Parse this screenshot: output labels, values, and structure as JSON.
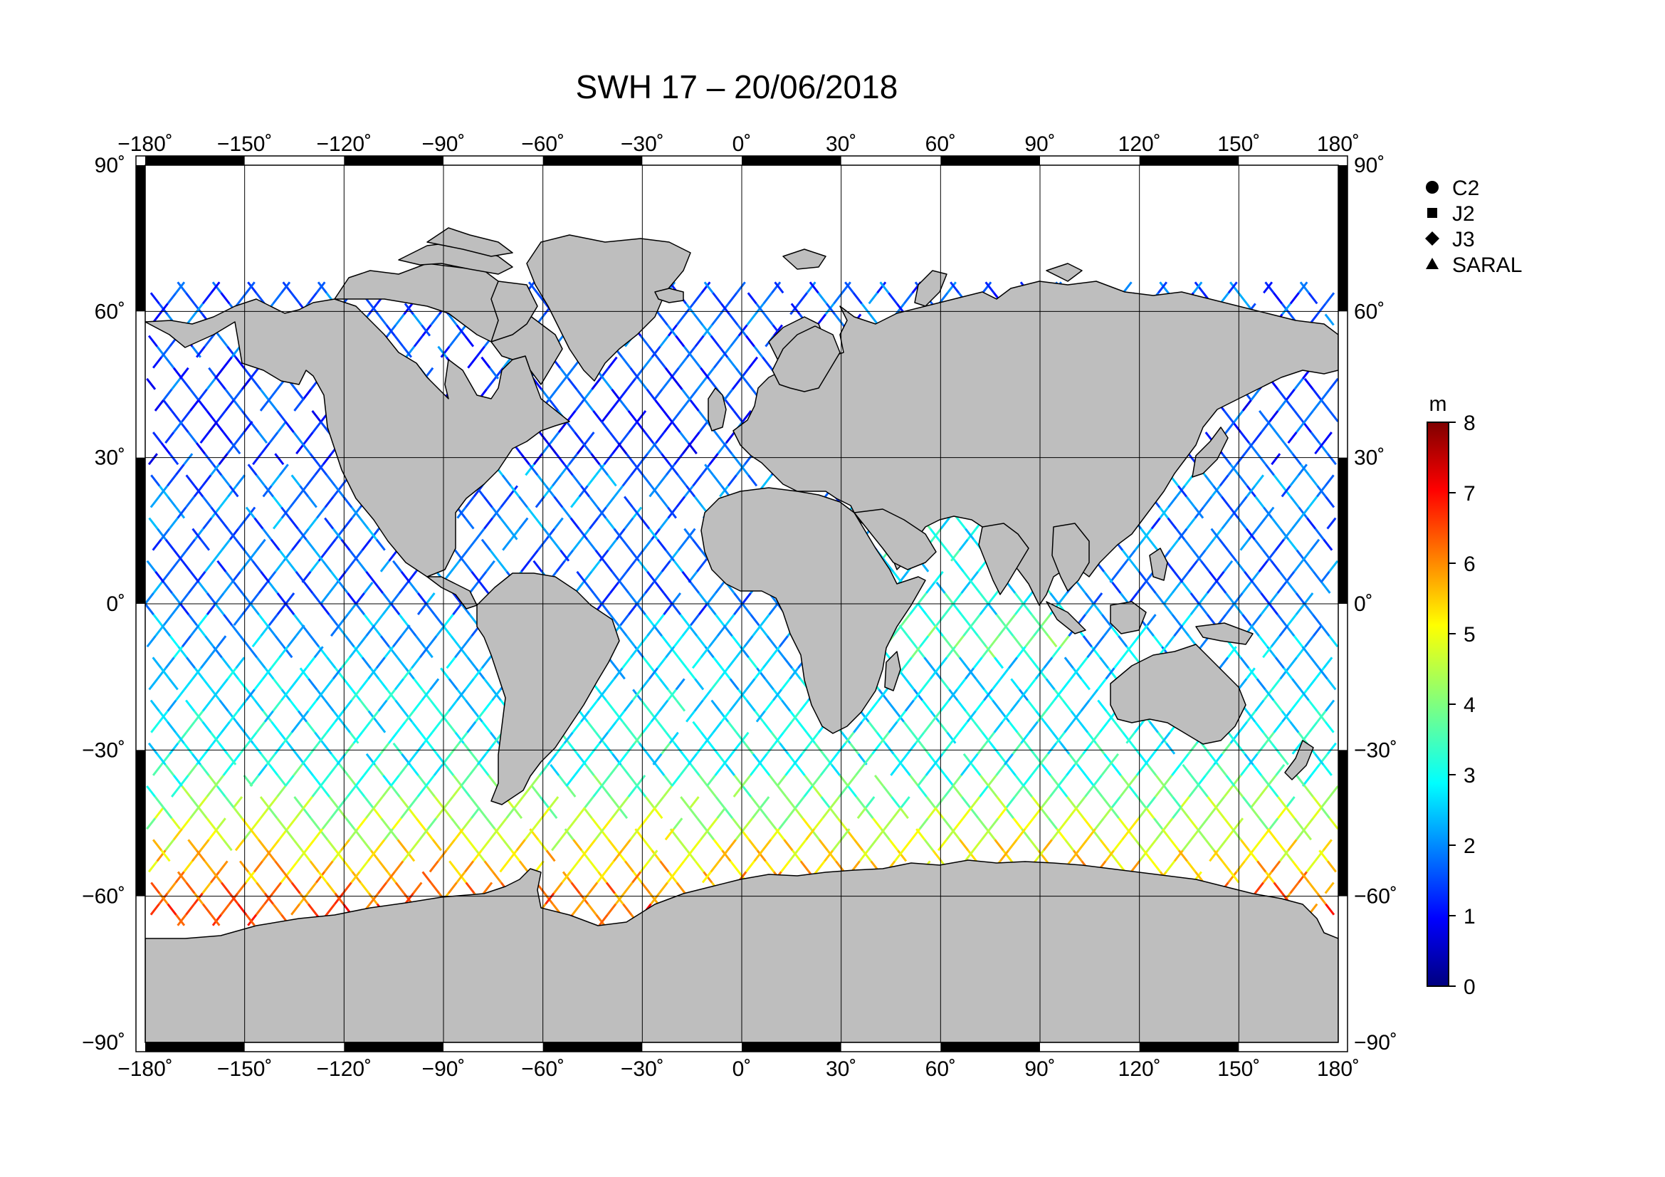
{
  "title": "SWH 17 – 20/06/2018",
  "axes": {
    "lon_ticks": [
      "−180˚",
      "−150˚",
      "−120˚",
      "−90˚",
      "−60˚",
      "−30˚",
      "0˚",
      "30˚",
      "60˚",
      "90˚",
      "120˚",
      "150˚",
      "180˚"
    ],
    "lat_ticks_left": [
      "90˚",
      "60˚",
      "30˚",
      "0˚",
      "−30˚",
      "−60˚",
      "−90˚"
    ],
    "lat_ticks_right": [
      "90˚",
      "60˚",
      "30˚",
      "0˚",
      "−30˚",
      "−60˚",
      "−90˚"
    ],
    "lon_range": [
      -180,
      180
    ],
    "lat_range": [
      -90,
      90
    ],
    "grid_step_deg": 30
  },
  "legend": {
    "items": [
      {
        "label": "C2",
        "marker": "circle"
      },
      {
        "label": "J2",
        "marker": "square"
      },
      {
        "label": "J3",
        "marker": "diamond"
      },
      {
        "label": "SARAL",
        "marker": "triangle"
      }
    ]
  },
  "colorbar": {
    "unit": "m",
    "min": 0,
    "max": 8,
    "tick_labels": [
      "0",
      "1",
      "2",
      "3",
      "4",
      "5",
      "6",
      "7",
      "8"
    ],
    "colormap": "jet"
  },
  "colors": {
    "land": "#bebebe",
    "ocean": "#ffffff",
    "grid": "#000000",
    "frame": "#000000"
  }
}
